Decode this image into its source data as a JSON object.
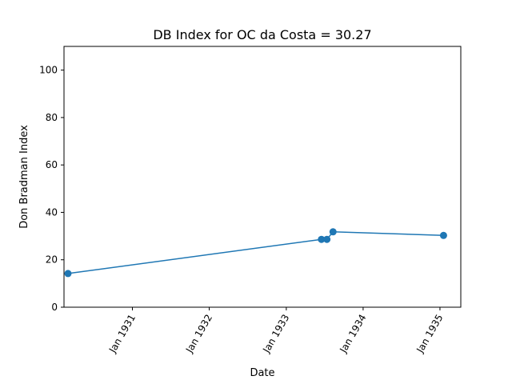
{
  "chart_data": {
    "type": "line",
    "title": "DB Index for OC da Costa = 30.27",
    "xlabel": "Date",
    "ylabel": "Don Bradman Index",
    "x_ticks": [
      "1931-01-01",
      "1932-01-01",
      "1933-01-01",
      "1934-01-01",
      "1935-01-01"
    ],
    "x_tick_labels": [
      "Jan 1931",
      "Jan 1932",
      "Jan 1933",
      "Jan 1934",
      "Jan 1935"
    ],
    "y_ticks": [
      0,
      20,
      40,
      60,
      80,
      100
    ],
    "xlim": [
      "1930-02-10",
      "1935-04-10"
    ],
    "ylim": [
      0,
      110
    ],
    "grid": false,
    "series": [
      {
        "color": "#1f77b4",
        "marker": "circle",
        "x": [
          "1930-03-01",
          "1933-06-17",
          "1933-07-13",
          "1933-08-11",
          "1935-01-18"
        ],
        "y": [
          14.2,
          28.6,
          28.6,
          31.8,
          30.27
        ]
      }
    ]
  }
}
